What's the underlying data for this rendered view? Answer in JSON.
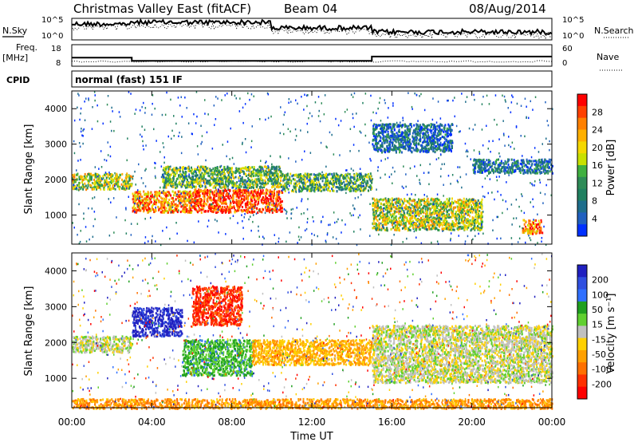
{
  "header": {
    "title": "Christmas Valley East (fitACF)",
    "beam": "Beam 04",
    "date": "08/Aug/2014"
  },
  "status": {
    "nsky_label": "N.Sky",
    "nsearch_label": "N.Search",
    "freq_label_1": "Freq.",
    "freq_label_2": "[MHz]",
    "nave_label": "Nave",
    "cpid_label": "CPID",
    "cpid_value": "normal (fast) 151 IF",
    "noise_ticks": [
      "10^5",
      "10^0"
    ],
    "freq_ticks": [
      "18",
      "8"
    ],
    "nave_ticks": [
      "60",
      "0"
    ],
    "freq_mhz": [
      {
        "start": 0.0,
        "end": 3.0,
        "value": 12.0
      },
      {
        "start": 3.0,
        "end": 15.0,
        "value": 10.5
      },
      {
        "start": 15.0,
        "end": 24.0,
        "value": 12.5
      }
    ]
  },
  "chart_data": [
    {
      "type": "heatmap",
      "name": "power",
      "ylabel": "Slant Range [km]",
      "yticks": [
        "4000",
        "3000",
        "2000",
        "1000"
      ],
      "ylim": [
        180,
        4500
      ],
      "colorbar_label": "Power [dB]",
      "colorbar_ticks": [
        "28",
        "24",
        "20",
        "16",
        "12",
        "8",
        "4"
      ],
      "colorbar_colors": [
        "#ff0000",
        "#ff4000",
        "#ff8000",
        "#ffb000",
        "#f5d800",
        "#c8e000",
        "#40b040",
        "#2e8b57",
        "#208060",
        "#1e6e8c",
        "#2060c0",
        "#0030ff"
      ],
      "bands": [
        {
          "t0": 0.0,
          "t1": 3.0,
          "r0": 1750,
          "r1": 2200,
          "level": 0.55
        },
        {
          "t0": 3.0,
          "t1": 6.0,
          "r0": 1100,
          "r1": 1700,
          "level": 0.75
        },
        {
          "t0": 6.0,
          "t1": 10.5,
          "r0": 1100,
          "r1": 1750,
          "level": 0.9
        },
        {
          "t0": 4.5,
          "t1": 10.5,
          "r0": 1800,
          "r1": 2400,
          "level": 0.45
        },
        {
          "t0": 10.5,
          "t1": 15.0,
          "r0": 1700,
          "r1": 2200,
          "level": 0.4
        },
        {
          "t0": 15.0,
          "t1": 20.5,
          "r0": 600,
          "r1": 1500,
          "level": 0.55
        },
        {
          "t0": 20.0,
          "t1": 24.0,
          "r0": 2200,
          "r1": 2600,
          "level": 0.25
        },
        {
          "t0": 15.0,
          "t1": 19.0,
          "r0": 2800,
          "r1": 3600,
          "level": 0.2
        },
        {
          "t0": 22.5,
          "t1": 23.5,
          "r0": 500,
          "r1": 900,
          "level": 0.8
        }
      ]
    },
    {
      "type": "heatmap",
      "name": "velocity",
      "xlabel": "Time UT",
      "ylabel": "Slant Range [km]",
      "xticks": [
        "00:00",
        "04:00",
        "08:00",
        "12:00",
        "16:00",
        "20:00",
        "00:00"
      ],
      "yticks": [
        "4000",
        "3000",
        "2000",
        "1000"
      ],
      "ylim": [
        180,
        4500
      ],
      "colorbar_label": "Velocity [m s⁻¹]",
      "colorbar_ticks": [
        "200",
        "100",
        "50",
        "15",
        "-15",
        "-50",
        "-100",
        "-200"
      ],
      "colorbar_colors": [
        "#2020c0",
        "#3050e0",
        "#3070ff",
        "#20a020",
        "#60d030",
        "#c0c0c0",
        "#ffd000",
        "#ffa000",
        "#ff7000",
        "#ff3000",
        "#ff0000"
      ],
      "bands": [
        {
          "t0": 0.0,
          "t1": 3.0,
          "r0": 1750,
          "r1": 2200,
          "vel": 0.0
        },
        {
          "t0": 3.0,
          "t1": 5.5,
          "r0": 2200,
          "r1": 3000,
          "vel": 180
        },
        {
          "t0": 5.5,
          "t1": 9.0,
          "r0": 1100,
          "r1": 2100,
          "vel": 60
        },
        {
          "t0": 6.0,
          "t1": 8.5,
          "r0": 2500,
          "r1": 3600,
          "vel": -150
        },
        {
          "t0": 9.0,
          "t1": 15.0,
          "r0": 1400,
          "r1": 2100,
          "vel": -60
        },
        {
          "t0": 15.0,
          "t1": 24.0,
          "r0": 900,
          "r1": 2500,
          "vel": 0.0
        },
        {
          "t0": 0.0,
          "t1": 24.0,
          "r0": 180,
          "r1": 450,
          "vel": -80
        }
      ]
    }
  ]
}
